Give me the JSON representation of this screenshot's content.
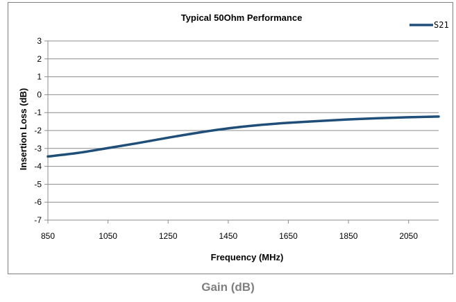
{
  "caption": "Gain (dB)",
  "chart_data": {
    "type": "line",
    "title": "Typical 50Ohm Performance",
    "xlabel": "Frequency (MHz)",
    "ylabel": "Insertion Loss (dB)",
    "xlim": [
      850,
      2150
    ],
    "ylim": [
      -7,
      3
    ],
    "xticks": [
      850,
      1050,
      1250,
      1450,
      1650,
      1850,
      2050
    ],
    "yticks": [
      3,
      2,
      1,
      0,
      -1,
      -2,
      -3,
      -4,
      -5,
      -6,
      -7
    ],
    "grid": true,
    "legend_position": "top-right",
    "series": [
      {
        "name": "S21",
        "color": "#1f4e79",
        "x": [
          850,
          950,
          1050,
          1150,
          1250,
          1350,
          1450,
          1550,
          1650,
          1750,
          1850,
          1950,
          2050,
          2150
        ],
        "y": [
          -3.45,
          -3.25,
          -2.98,
          -2.7,
          -2.4,
          -2.12,
          -1.88,
          -1.7,
          -1.57,
          -1.47,
          -1.38,
          -1.31,
          -1.26,
          -1.22
        ]
      }
    ]
  }
}
